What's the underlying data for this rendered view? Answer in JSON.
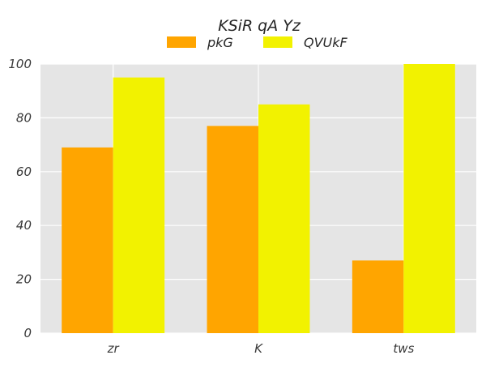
{
  "chart_data": {
    "type": "bar",
    "title": "KSiR qA Yz",
    "xlabel": "",
    "ylabel": "",
    "categories": [
      "zr",
      "K",
      "tws"
    ],
    "series": [
      {
        "name": "pkG",
        "values": [
          69,
          77,
          27
        ],
        "color": "#ffa500"
      },
      {
        "name": "QVUkF",
        "values": [
          95,
          85,
          100
        ],
        "color": "#f2f200"
      }
    ],
    "ylim": [
      0,
      100
    ],
    "yticks": [
      "0",
      "20",
      "40",
      "60",
      "80",
      "100"
    ],
    "grid": true,
    "legend_position": "top-center",
    "background_color": "#e5e5e5",
    "grid_color": "#ffffff"
  }
}
